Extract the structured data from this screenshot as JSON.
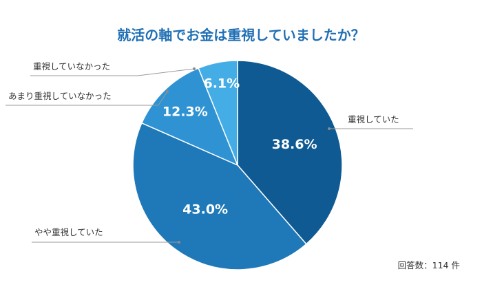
{
  "chart_data": {
    "type": "pie",
    "title": "就活の軸でお金は重視していましたか？",
    "slices": [
      {
        "label": "重視していた",
        "value": 38.6,
        "value_label": "38.6%",
        "color": "#0f5a92"
      },
      {
        "label": "やや重視していた",
        "value": 43.0,
        "value_label": "43.0%",
        "color": "#1f79b8"
      },
      {
        "label": "あまり重視していなかった",
        "value": 12.3,
        "value_label": "12.3%",
        "color": "#2f93d3"
      },
      {
        "label": "重視していなかった",
        "value": 6.1,
        "value_label": "6.1%",
        "color": "#45ade6"
      }
    ],
    "start_angle": "12 o'clock",
    "direction": "clockwise"
  },
  "footnote": "回答数：114 件"
}
